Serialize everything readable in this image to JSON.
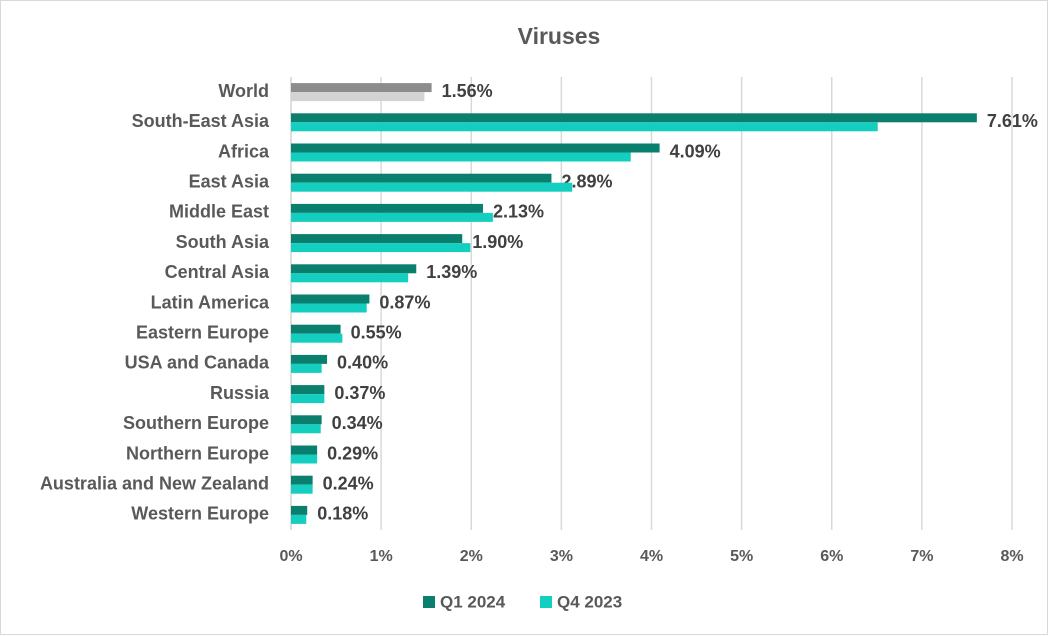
{
  "chart_data": {
    "type": "hbar",
    "title": "Viruses",
    "categories": [
      "World",
      "South-East Asia",
      "Africa",
      "East Asia",
      "Middle East",
      "South Asia",
      "Central Asia",
      "Latin America",
      "Eastern Europe",
      "USA and Canada",
      "Russia",
      "Southern Europe",
      "Northern Europe",
      "Australia and New Zealand",
      "Western Europe"
    ],
    "series": [
      {
        "name": "Q1 2024",
        "color": "#0a7f6e",
        "colors": [
          "#8c8c8c",
          "#0a7f6e",
          "#0a7f6e",
          "#0a7f6e",
          "#0a7f6e",
          "#0a7f6e",
          "#0a7f6e",
          "#0a7f6e",
          "#0a7f6e",
          "#0a7f6e",
          "#0a7f6e",
          "#0a7f6e",
          "#0a7f6e",
          "#0a7f6e",
          "#0a7f6e"
        ],
        "values": [
          1.56,
          7.61,
          4.09,
          2.89,
          2.13,
          1.9,
          1.39,
          0.87,
          0.55,
          0.4,
          0.37,
          0.34,
          0.29,
          0.24,
          0.18
        ],
        "value_labels": [
          "1.56%",
          "7.61%",
          "4.09%",
          "2.89%",
          "2.13%",
          "1.90%",
          "1.39%",
          "0.87%",
          "0.55%",
          "0.40%",
          "0.37%",
          "0.34%",
          "0.29%",
          "0.24%",
          "0.18%"
        ]
      },
      {
        "name": "Q4 2023",
        "color": "#14cfc0",
        "colors": [
          "#d3d3d3",
          "#14cfc0",
          "#14cfc0",
          "#14cfc0",
          "#14cfc0",
          "#14cfc0",
          "#14cfc0",
          "#14cfc0",
          "#14cfc0",
          "#14cfc0",
          "#14cfc0",
          "#14cfc0",
          "#14cfc0",
          "#14cfc0",
          "#14cfc0"
        ],
        "values": [
          1.48,
          6.51,
          3.77,
          3.12,
          2.24,
          1.99,
          1.3,
          0.84,
          0.57,
          0.34,
          0.37,
          0.33,
          0.29,
          0.24,
          0.17
        ]
      }
    ],
    "xlim": [
      0,
      8
    ],
    "xticks": [
      {
        "value": 0,
        "label": "0%"
      },
      {
        "value": 1,
        "label": "1%"
      },
      {
        "value": 2,
        "label": "2%"
      },
      {
        "value": 3,
        "label": "3%"
      },
      {
        "value": 4,
        "label": "4%"
      },
      {
        "value": 5,
        "label": "5%"
      },
      {
        "value": 6,
        "label": "6%"
      },
      {
        "value": 7,
        "label": "7%"
      },
      {
        "value": 8,
        "label": "8%"
      }
    ],
    "grid": true,
    "legend": "bottom"
  }
}
